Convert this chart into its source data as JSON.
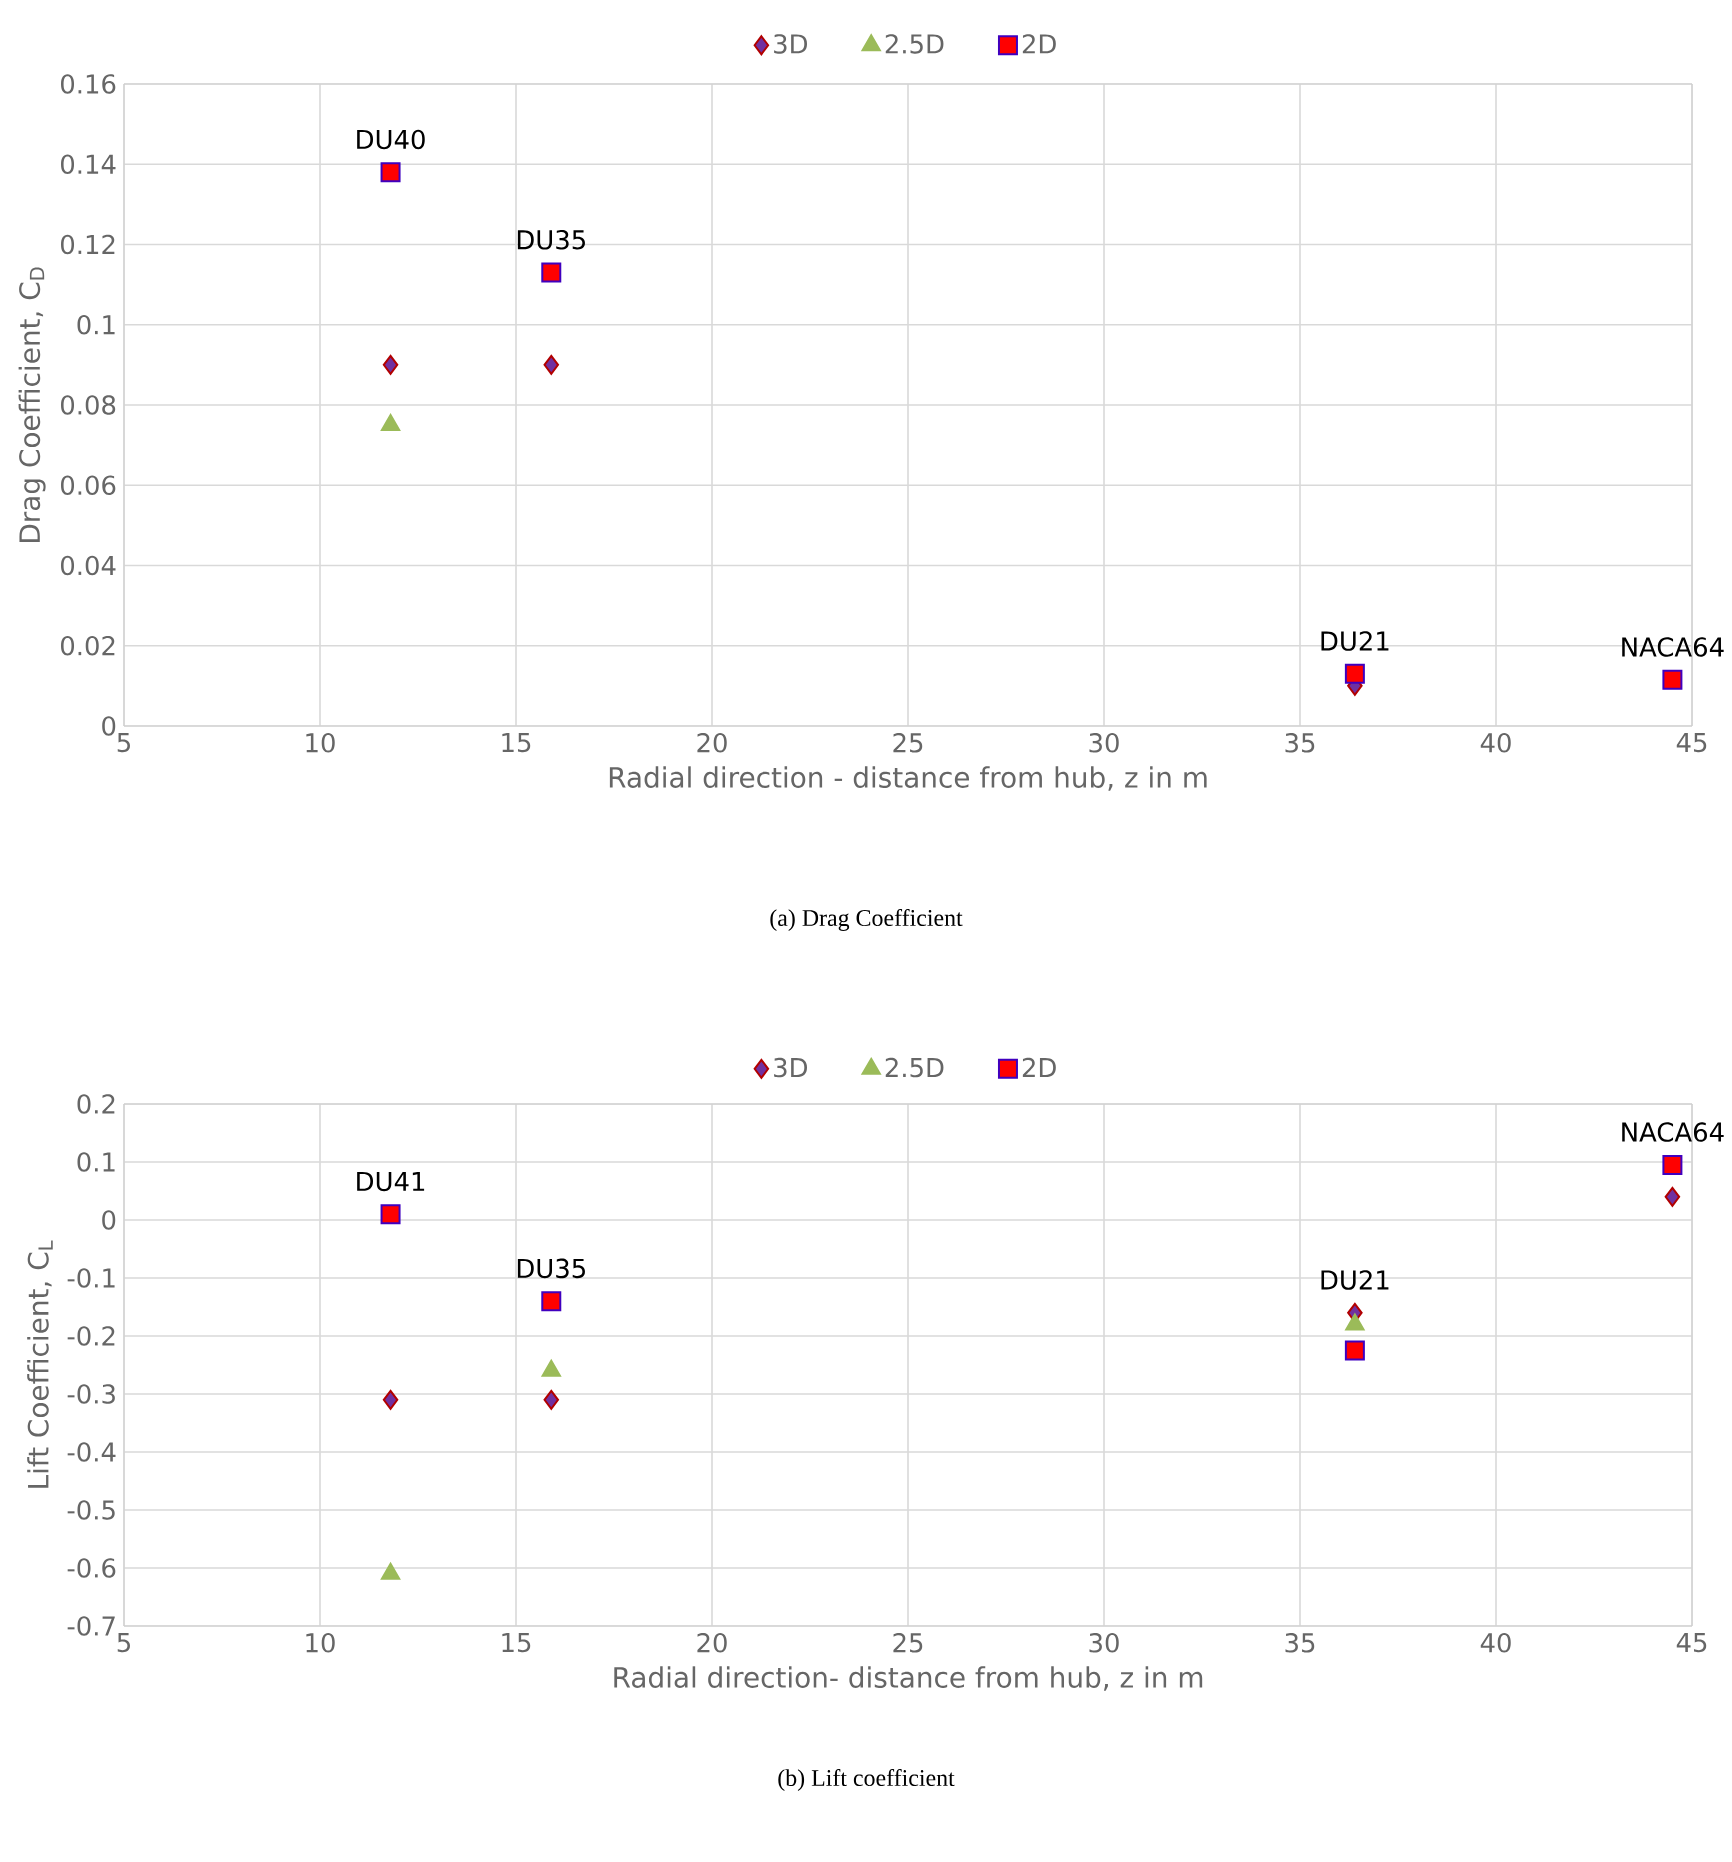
{
  "chart_data": [
    {
      "type": "scatter",
      "xlabel": "Radial direction - distance from hub, z in m",
      "ylabel": "Drag Coefficient, C$_{D}$",
      "x": [
        11.8,
        15.9,
        36.4,
        44.5
      ],
      "series": [
        {
          "name": "3D",
          "color": "#7030a0",
          "marker": "diamond",
          "values": [
            0.09,
            0.09,
            0.01,
            null
          ]
        },
        {
          "name": "2.5D",
          "color": "#9bbb59",
          "marker": "triangle",
          "values": [
            0.075,
            null,
            null,
            null
          ]
        },
        {
          "name": "2D",
          "color": "#ff0000",
          "marker": "square",
          "values": [
            0.138,
            0.113,
            0.013,
            0.0115
          ]
        }
      ],
      "xlim": [
        5,
        45
      ],
      "xticks": [
        5,
        10,
        15,
        20,
        25,
        30,
        35,
        40,
        45
      ],
      "ylim": [
        0,
        0.16
      ],
      "yticks": [
        0,
        0.02,
        0.04,
        0.06,
        0.08,
        0.1,
        0.12,
        0.14,
        0.16
      ],
      "grid": true,
      "legend": "top",
      "annotations": [
        {
          "text": "DU40",
          "x": 11.8,
          "y": 0.138
        },
        {
          "text": "DU35",
          "x": 15.9,
          "y": 0.113
        },
        {
          "text": "DU21",
          "x": 36.4,
          "y": 0.013
        },
        {
          "text": "NACA64",
          "x": 44.5,
          "y": 0.0115
        },
        "(a)  Drag Coefficient"
      ]
    },
    {
      "type": "scatter",
      "xlabel": "Radial direction- distance from hub, z in m",
      "ylabel": "Lift Coefficient, C$_{L}$",
      "x": [
        11.8,
        15.9,
        36.4,
        44.5
      ],
      "series": [
        {
          "name": "3D",
          "color": "#7030a0",
          "marker": "diamond",
          "values": [
            -0.31,
            -0.31,
            -0.16,
            0.04
          ]
        },
        {
          "name": "2.5D",
          "color": "#9bbb59",
          "marker": "triangle",
          "values": [
            -0.61,
            -0.26,
            -0.18,
            null
          ]
        },
        {
          "name": "2D",
          "color": "#ff0000",
          "marker": "square",
          "values": [
            0.01,
            -0.14,
            -0.225,
            0.095
          ]
        }
      ],
      "xlim": [
        5,
        45
      ],
      "xticks": [
        5,
        10,
        15,
        20,
        25,
        30,
        35,
        40,
        45
      ],
      "ylim": [
        -0.7,
        0.2
      ],
      "yticks": [
        -0.7,
        -0.6,
        -0.5,
        -0.4,
        -0.3,
        -0.2,
        -0.1,
        0,
        0.1,
        0.2
      ],
      "grid": true,
      "legend": "top",
      "annotations": [
        {
          "text": "DU41",
          "x": 11.8,
          "y": 0.01
        },
        {
          "text": "DU35",
          "x": 15.9,
          "y": -0.14
        },
        {
          "text": "DU21",
          "x": 36.4,
          "y": -0.16
        },
        {
          "text": "NACA64",
          "x": 44.5,
          "y": 0.095
        },
        "(b)  Lift coefficient"
      ]
    }
  ]
}
